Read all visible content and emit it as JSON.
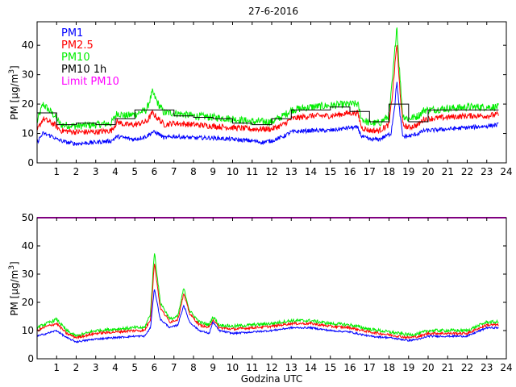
{
  "title": "27-6-2016",
  "xlabel": "Godzina UTC",
  "ylabel_prefix": "PM [μg/m",
  "ylabel_exp": "3",
  "ylabel_suffix": "]",
  "colors": {
    "pm1": "#0000ff",
    "pm25": "#ff0000",
    "pm10": "#00ee00",
    "pm10h": "#000000",
    "limit": "#ff00ff"
  },
  "legend": [
    {
      "key": "pm1",
      "label": "PM1"
    },
    {
      "key": "pm25",
      "label": "PM2.5"
    },
    {
      "key": "pm10",
      "label": "PM10"
    },
    {
      "key": "pm10h",
      "label": "PM10 1h"
    },
    {
      "key": "limit",
      "label": "Limit PM10"
    }
  ],
  "chart_data": [
    {
      "type": "line",
      "id": "top",
      "title": "27-6-2016",
      "xlabel": "",
      "ylabel": "PM [μg/m3]",
      "xlim": [
        0,
        24
      ],
      "ylim": [
        0,
        48
      ],
      "xticks": [
        1,
        2,
        3,
        4,
        5,
        6,
        7,
        8,
        9,
        10,
        11,
        12,
        13,
        14,
        15,
        16,
        17,
        18,
        19,
        20,
        21,
        22,
        23,
        24
      ],
      "yticks": [
        0,
        10,
        20,
        30,
        40
      ],
      "legend_location": "top-left",
      "keypoints": {
        "pm1": [
          [
            0,
            7
          ],
          [
            0.3,
            10
          ],
          [
            0.8,
            9
          ],
          [
            1,
            8
          ],
          [
            1.5,
            7
          ],
          [
            2,
            6.5
          ],
          [
            3,
            7
          ],
          [
            3.8,
            7.5
          ],
          [
            4.1,
            9
          ],
          [
            4.5,
            8.5
          ],
          [
            5,
            8
          ],
          [
            5.6,
            9
          ],
          [
            5.9,
            10.5
          ],
          [
            6.2,
            10
          ],
          [
            6.5,
            8.5
          ],
          [
            7,
            9
          ],
          [
            8,
            8.5
          ],
          [
            9,
            8.5
          ],
          [
            10,
            8
          ],
          [
            11,
            7.5
          ],
          [
            11.5,
            7
          ],
          [
            12,
            7.5
          ],
          [
            12.6,
            9
          ],
          [
            13,
            10.5
          ],
          [
            14,
            11
          ],
          [
            15,
            11
          ],
          [
            15.5,
            11.5
          ],
          [
            16,
            12
          ],
          [
            16.4,
            12
          ],
          [
            16.6,
            9
          ],
          [
            17,
            8
          ],
          [
            17.5,
            8
          ],
          [
            17.8,
            9
          ],
          [
            18.1,
            10
          ],
          [
            18.3,
            20
          ],
          [
            18.4,
            28
          ],
          [
            18.5,
            20
          ],
          [
            18.7,
            9
          ],
          [
            19,
            9
          ],
          [
            19.5,
            10
          ],
          [
            19.8,
            11
          ],
          [
            20,
            11
          ],
          [
            21,
            11.5
          ],
          [
            22,
            12
          ],
          [
            23,
            12.5
          ],
          [
            23.6,
            13
          ]
        ],
        "pm25": [
          [
            0,
            11
          ],
          [
            0.3,
            15
          ],
          [
            0.6,
            14
          ],
          [
            0.9,
            13
          ],
          [
            1.2,
            11
          ],
          [
            2,
            10.5
          ],
          [
            3,
            10.5
          ],
          [
            3.8,
            11
          ],
          [
            4.1,
            14
          ],
          [
            4.5,
            13
          ],
          [
            5,
            13
          ],
          [
            5.6,
            14
          ],
          [
            5.9,
            17
          ],
          [
            6.2,
            15
          ],
          [
            6.5,
            13
          ],
          [
            7,
            13.5
          ],
          [
            8,
            13
          ],
          [
            9,
            12.5
          ],
          [
            10,
            12
          ],
          [
            11,
            11.5
          ],
          [
            12,
            11.5
          ],
          [
            12.6,
            13
          ],
          [
            13,
            15
          ],
          [
            14,
            16
          ],
          [
            15,
            16
          ],
          [
            16,
            17
          ],
          [
            16.4,
            17
          ],
          [
            16.6,
            12
          ],
          [
            17,
            11
          ],
          [
            17.5,
            11
          ],
          [
            18,
            13
          ],
          [
            18.2,
            25
          ],
          [
            18.4,
            41
          ],
          [
            18.5,
            30
          ],
          [
            18.7,
            13
          ],
          [
            19,
            12
          ],
          [
            19.5,
            13
          ],
          [
            19.8,
            15
          ],
          [
            20,
            15
          ],
          [
            21,
            15.5
          ],
          [
            22,
            16
          ],
          [
            23,
            16
          ],
          [
            23.6,
            16.5
          ]
        ],
        "pm10": [
          [
            0,
            14
          ],
          [
            0.3,
            20
          ],
          [
            0.6,
            18
          ],
          [
            0.9,
            16
          ],
          [
            1.2,
            13
          ],
          [
            2,
            12.5
          ],
          [
            3,
            13
          ],
          [
            3.8,
            13.5
          ],
          [
            4.1,
            17
          ],
          [
            4.5,
            16
          ],
          [
            5,
            16.5
          ],
          [
            5.6,
            18
          ],
          [
            5.9,
            24
          ],
          [
            6.2,
            20
          ],
          [
            6.5,
            17
          ],
          [
            7,
            17
          ],
          [
            8,
            16
          ],
          [
            9,
            15.5
          ],
          [
            10,
            15
          ],
          [
            11,
            14
          ],
          [
            12,
            14
          ],
          [
            12.6,
            16
          ],
          [
            13,
            18
          ],
          [
            14,
            19
          ],
          [
            15,
            19.5
          ],
          [
            16,
            20
          ],
          [
            16.4,
            20
          ],
          [
            16.6,
            15
          ],
          [
            17,
            13.5
          ],
          [
            17.5,
            13.5
          ],
          [
            18,
            16
          ],
          [
            18.2,
            30
          ],
          [
            18.4,
            47
          ],
          [
            18.5,
            35
          ],
          [
            18.7,
            16
          ],
          [
            19,
            15
          ],
          [
            19.5,
            16
          ],
          [
            19.8,
            18
          ],
          [
            20,
            18
          ],
          [
            21,
            18.5
          ],
          [
            22,
            19
          ],
          [
            23,
            19
          ],
          [
            23.6,
            19
          ]
        ],
        "pm10h": [
          [
            0,
            17
          ],
          [
            1,
            13
          ],
          [
            2,
            13.5
          ],
          [
            3,
            13
          ],
          [
            4,
            15
          ],
          [
            5,
            18
          ],
          [
            6,
            18
          ],
          [
            7,
            16
          ],
          [
            8,
            15.5
          ],
          [
            9,
            15
          ],
          [
            10,
            13.5
          ],
          [
            11,
            13
          ],
          [
            12,
            15
          ],
          [
            13,
            18
          ],
          [
            14,
            18
          ],
          [
            15,
            19
          ],
          [
            16,
            17.5
          ],
          [
            17,
            14
          ],
          [
            18,
            20
          ],
          [
            19,
            14
          ],
          [
            20,
            18
          ],
          [
            21,
            18
          ],
          [
            22,
            18
          ],
          [
            23,
            18
          ]
        ]
      }
    },
    {
      "type": "line",
      "id": "bottom",
      "title": "",
      "xlabel": "Godzina UTC",
      "ylabel": "PM [μg/m3]",
      "xlim": [
        0,
        24
      ],
      "ylim": [
        0,
        50
      ],
      "xticks": [
        1,
        2,
        3,
        4,
        5,
        6,
        7,
        8,
        9,
        10,
        11,
        12,
        13,
        14,
        15,
        16,
        17,
        18,
        19,
        20,
        21,
        22,
        23,
        24
      ],
      "yticks": [
        0,
        10,
        20,
        30,
        40,
        50
      ],
      "limit_pm10": 50,
      "keypoints": {
        "pm1": [
          [
            0,
            8
          ],
          [
            0.5,
            9
          ],
          [
            1,
            10
          ],
          [
            1.5,
            7.5
          ],
          [
            2,
            6
          ],
          [
            3,
            7
          ],
          [
            4,
            7.5
          ],
          [
            5,
            8
          ],
          [
            5.5,
            8
          ],
          [
            5.8,
            11
          ],
          [
            6,
            25
          ],
          [
            6.3,
            14
          ],
          [
            6.8,
            11
          ],
          [
            7.2,
            12
          ],
          [
            7.5,
            19
          ],
          [
            7.8,
            13
          ],
          [
            8.3,
            10
          ],
          [
            8.8,
            9
          ],
          [
            9,
            13
          ],
          [
            9.3,
            10
          ],
          [
            10,
            9
          ],
          [
            11,
            9.5
          ],
          [
            12,
            10
          ],
          [
            13,
            11
          ],
          [
            14,
            11
          ],
          [
            15,
            10
          ],
          [
            16,
            9.5
          ],
          [
            17,
            8
          ],
          [
            18,
            7.5
          ],
          [
            19,
            6.5
          ],
          [
            19.6,
            7
          ],
          [
            20,
            8
          ],
          [
            21,
            8
          ],
          [
            22,
            8
          ],
          [
            23,
            11
          ],
          [
            23.6,
            11
          ]
        ],
        "pm25": [
          [
            0,
            10
          ],
          [
            0.5,
            11.5
          ],
          [
            1,
            12.5
          ],
          [
            1.5,
            9
          ],
          [
            2,
            7.5
          ],
          [
            3,
            9
          ],
          [
            4,
            9.5
          ],
          [
            5,
            10
          ],
          [
            5.5,
            10
          ],
          [
            5.8,
            14
          ],
          [
            6,
            34
          ],
          [
            6.3,
            18
          ],
          [
            6.8,
            13
          ],
          [
            7.2,
            14
          ],
          [
            7.5,
            23
          ],
          [
            7.8,
            16
          ],
          [
            8.3,
            12
          ],
          [
            8.8,
            11
          ],
          [
            9,
            14
          ],
          [
            9.3,
            11
          ],
          [
            10,
            10.5
          ],
          [
            11,
            11
          ],
          [
            12,
            11.5
          ],
          [
            13,
            12.5
          ],
          [
            14,
            12.5
          ],
          [
            15,
            11.5
          ],
          [
            16,
            11
          ],
          [
            17,
            9.5
          ],
          [
            18,
            8.5
          ],
          [
            19,
            7.5
          ],
          [
            19.6,
            8
          ],
          [
            20,
            9
          ],
          [
            21,
            9
          ],
          [
            22,
            9
          ],
          [
            23,
            12
          ],
          [
            23.6,
            12
          ]
        ],
        "pm10": [
          [
            0,
            11
          ],
          [
            0.5,
            12.5
          ],
          [
            1,
            14
          ],
          [
            1.5,
            10
          ],
          [
            2,
            8
          ],
          [
            3,
            10
          ],
          [
            4,
            10.5
          ],
          [
            5,
            11
          ],
          [
            5.5,
            11
          ],
          [
            5.8,
            16
          ],
          [
            6,
            38
          ],
          [
            6.3,
            20
          ],
          [
            6.8,
            14
          ],
          [
            7.2,
            15
          ],
          [
            7.5,
            25
          ],
          [
            7.8,
            17
          ],
          [
            8.3,
            13
          ],
          [
            8.8,
            12
          ],
          [
            9,
            15
          ],
          [
            9.3,
            12
          ],
          [
            10,
            11.5
          ],
          [
            11,
            12
          ],
          [
            12,
            12.5
          ],
          [
            13,
            13.5
          ],
          [
            14,
            13.5
          ],
          [
            15,
            12.5
          ],
          [
            16,
            12
          ],
          [
            17,
            10.5
          ],
          [
            18,
            9.5
          ],
          [
            19,
            8.5
          ],
          [
            19.6,
            9
          ],
          [
            20,
            10
          ],
          [
            21,
            10
          ],
          [
            22,
            10
          ],
          [
            23,
            13
          ],
          [
            23.6,
            13
          ]
        ]
      }
    }
  ]
}
